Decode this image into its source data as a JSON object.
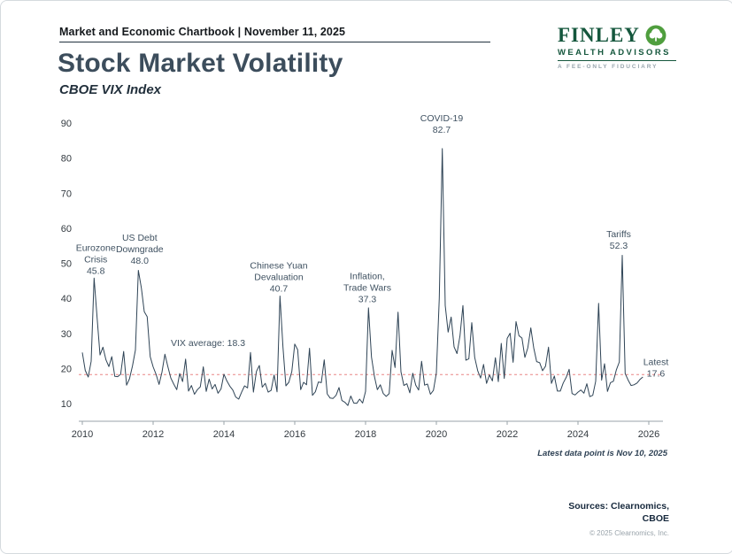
{
  "header": {
    "title": "Market and Economic Chartbook | November 11, 2025"
  },
  "logo": {
    "name": "FINLEY",
    "sub": "WEALTH ADVISORS",
    "tagline": "A FEE-ONLY FIDUCIARY",
    "brand_green": "#15573d",
    "tree_green": "#4f9e3e",
    "tree_icon": "tree-icon"
  },
  "page": {
    "title": "Stock Market Volatility",
    "subtitle": "CBOE VIX Index"
  },
  "footnote": "Latest data point is Nov 10, 2025",
  "sources": {
    "line1": "Sources: Clearnomics,",
    "line2": "CBOE",
    "copyright": "© 2025 Clearnomics, Inc."
  },
  "chart_data": {
    "type": "line",
    "title": "Stock Market Volatility",
    "subtitle": "CBOE VIX Index",
    "xlabel": "",
    "ylabel": "",
    "grid": false,
    "legend": false,
    "xlim": [
      2009.9,
      2026.4
    ],
    "ylim": [
      5,
      90
    ],
    "x_ticks": [
      2010,
      2012,
      2014,
      2016,
      2018,
      2020,
      2022,
      2024,
      2026
    ],
    "y_ticks": [
      10,
      20,
      30,
      40,
      50,
      60,
      70,
      80,
      90
    ],
    "x_start": 2010.0,
    "points_per_year": 12,
    "line_color": "#2f4456",
    "avg_line_color": "#e57373",
    "average": {
      "value": 18.3,
      "label": "VIX average: 18.3",
      "label_x": 2012.5,
      "label_y": 26.5
    },
    "latest": {
      "value": 17.6,
      "label": "Latest",
      "date": "Nov 10, 2025"
    },
    "annotations": [
      {
        "x": 2010.38,
        "y": 53.5,
        "lines": [
          "Eurozone",
          "Crisis",
          "45.8"
        ]
      },
      {
        "x": 2011.62,
        "y": 56.5,
        "lines": [
          "US Debt",
          "Downgrade",
          "48.0"
        ]
      },
      {
        "x": 2015.55,
        "y": 48.5,
        "lines": [
          "Chinese Yuan",
          "Devaluation",
          "40.7"
        ]
      },
      {
        "x": 2018.05,
        "y": 45.5,
        "lines": [
          "Inflation,",
          "Trade Wars",
          "37.3"
        ]
      },
      {
        "x": 2020.15,
        "y": 90.5,
        "lines": [
          "COVID-19",
          "82.7"
        ]
      },
      {
        "x": 2025.15,
        "y": 57.5,
        "lines": [
          "Tariffs",
          "52.3"
        ]
      },
      {
        "x": 2026.2,
        "y": 21.0,
        "lines": [
          "Latest",
          "17.6"
        ]
      }
    ],
    "series": [
      {
        "name": "CBOE VIX Index",
        "color": "#2f4456",
        "values": [
          24.6,
          19.5,
          17.6,
          22.1,
          45.8,
          34.5,
          23.9,
          26.1,
          22.5,
          20.6,
          23.4,
          17.8,
          17.7,
          18.4,
          24.9,
          15.3,
          17.1,
          20.8,
          25.3,
          48.0,
          43.0,
          36.2,
          34.8,
          23.4,
          20.5,
          18.4,
          15.5,
          19.0,
          24.1,
          20.5,
          17.3,
          15.6,
          14.0,
          18.6,
          16.3,
          22.7,
          13.6,
          15.2,
          12.7,
          14.0,
          14.8,
          20.5,
          13.5,
          17.0,
          14.2,
          15.5,
          13.0,
          14.2,
          18.4,
          16.5,
          15.0,
          13.9,
          11.9,
          11.3,
          13.3,
          15.1,
          14.5,
          24.6,
          13.3,
          19.2,
          20.9,
          14.7,
          15.8,
          13.3,
          13.8,
          18.2,
          13.4,
          40.7,
          26.1,
          15.1,
          16.1,
          19.2,
          27.0,
          25.4,
          14.0,
          16.1,
          15.4,
          25.8,
          12.4,
          13.4,
          16.2,
          16.0,
          22.5,
          12.8,
          11.6,
          11.5,
          12.4,
          14.6,
          10.9,
          10.4,
          9.5,
          12.2,
          10.2,
          10.1,
          11.3,
          10.2,
          13.5,
          37.3,
          23.3,
          17.8,
          14.0,
          15.4,
          12.9,
          12.1,
          12.9,
          25.2,
          20.3,
          36.1,
          19.1,
          15.2,
          15.7,
          13.1,
          18.7,
          15.3,
          13.9,
          22.1,
          15.3,
          15.6,
          12.7,
          13.8,
          18.8,
          40.1,
          82.7,
          38.0,
          30.4,
          34.7,
          26.2,
          24.3,
          29.4,
          38.0,
          22.4,
          22.8,
          33.1,
          23.2,
          19.4,
          17.3,
          21.2,
          15.8,
          18.2,
          16.5,
          23.1,
          16.3,
          27.2,
          17.2,
          28.6,
          30.1,
          21.8,
          33.4,
          29.4,
          28.7,
          23.2,
          25.9,
          31.6,
          25.9,
          22.0,
          21.7,
          19.4,
          20.7,
          26.1,
          15.8,
          17.9,
          13.6,
          13.6,
          15.9,
          17.5,
          19.8,
          12.9,
          12.5,
          13.3,
          13.9,
          13.0,
          15.7,
          12.0,
          12.4,
          16.4,
          38.6,
          16.7,
          21.4,
          13.5,
          16.0,
          16.4,
          19.6,
          21.9,
          52.3,
          18.6,
          16.7,
          15.2,
          15.4,
          15.9,
          16.9,
          17.6
        ]
      }
    ]
  }
}
